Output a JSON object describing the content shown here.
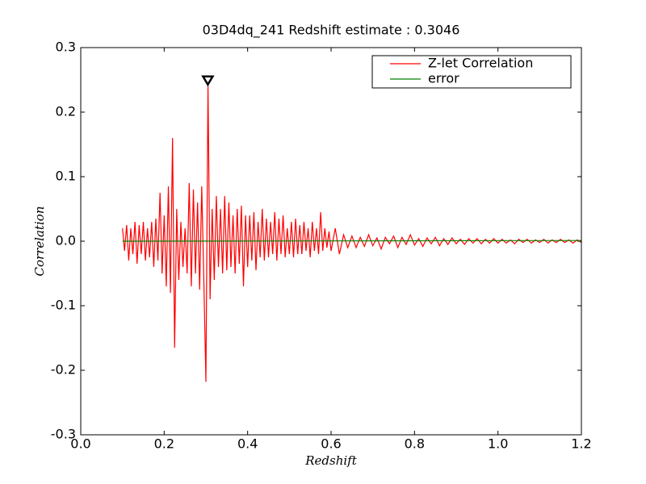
{
  "chart_data": {
    "type": "line",
    "title": "03D4dq_241 Redshift estimate : 0.3046",
    "xlabel": "Redshift",
    "ylabel": "Correlation",
    "xlim": [
      0,
      1.2
    ],
    "ylim": [
      -0.3,
      0.3
    ],
    "xticks": [
      {
        "value": 0,
        "label": "0.0"
      },
      0.2,
      0.4,
      0.6,
      0.8,
      {
        "value": 1,
        "label": "1.0"
      },
      1.2
    ],
    "yticks": [
      -0.3,
      -0.2,
      -0.1,
      {
        "value": 0,
        "label": "0.0"
      },
      0.1,
      0.2,
      0.3
    ],
    "legend": "upper right",
    "series": [
      {
        "name": "Z-let Correlation",
        "color": "#ff0000",
        "x": [
          0.1,
          0.105,
          0.11,
          0.115,
          0.12,
          0.125,
          0.13,
          0.135,
          0.14,
          0.145,
          0.15,
          0.155,
          0.16,
          0.165,
          0.17,
          0.175,
          0.18,
          0.185,
          0.19,
          0.195,
          0.2,
          0.205,
          0.21,
          0.215,
          0.22,
          0.225,
          0.23,
          0.235,
          0.24,
          0.245,
          0.25,
          0.255,
          0.26,
          0.265,
          0.27,
          0.275,
          0.28,
          0.285,
          0.29,
          0.295,
          0.3,
          0.305,
          0.31,
          0.315,
          0.32,
          0.325,
          0.33,
          0.335,
          0.34,
          0.345,
          0.35,
          0.355,
          0.36,
          0.365,
          0.37,
          0.375,
          0.38,
          0.385,
          0.39,
          0.395,
          0.4,
          0.405,
          0.41,
          0.415,
          0.42,
          0.425,
          0.43,
          0.435,
          0.44,
          0.445,
          0.45,
          0.455,
          0.46,
          0.465,
          0.47,
          0.475,
          0.48,
          0.485,
          0.49,
          0.495,
          0.5,
          0.505,
          0.51,
          0.515,
          0.52,
          0.525,
          0.53,
          0.535,
          0.54,
          0.545,
          0.55,
          0.555,
          0.56,
          0.565,
          0.57,
          0.575,
          0.58,
          0.585,
          0.59,
          0.595,
          0.6,
          0.61,
          0.62,
          0.63,
          0.64,
          0.65,
          0.66,
          0.67,
          0.68,
          0.69,
          0.7,
          0.71,
          0.72,
          0.73,
          0.74,
          0.75,
          0.76,
          0.77,
          0.78,
          0.79,
          0.8,
          0.81,
          0.82,
          0.83,
          0.84,
          0.85,
          0.86,
          0.87,
          0.88,
          0.89,
          0.9,
          0.91,
          0.92,
          0.93,
          0.94,
          0.95,
          0.96,
          0.97,
          0.98,
          0.99,
          1.0,
          1.01,
          1.02,
          1.03,
          1.04,
          1.05,
          1.06,
          1.07,
          1.08,
          1.09,
          1.1,
          1.11,
          1.12,
          1.13,
          1.14,
          1.15,
          1.16,
          1.17,
          1.18,
          1.19,
          1.2
        ],
        "values": [
          0.02,
          -0.015,
          0.025,
          -0.03,
          0.02,
          -0.02,
          0.03,
          -0.035,
          0.025,
          -0.02,
          0.03,
          -0.03,
          0.02,
          -0.025,
          0.03,
          -0.04,
          0.035,
          -0.03,
          0.075,
          -0.05,
          0.04,
          -0.07,
          0.085,
          -0.08,
          0.16,
          -0.165,
          0.05,
          -0.06,
          0.03,
          -0.04,
          0.02,
          -0.05,
          0.09,
          -0.07,
          0.08,
          -0.05,
          0.06,
          -0.075,
          0.085,
          -0.06,
          -0.218,
          0.245,
          -0.09,
          0.05,
          -0.06,
          0.07,
          -0.04,
          0.05,
          -0.05,
          0.07,
          -0.045,
          0.06,
          -0.04,
          0.04,
          -0.05,
          0.05,
          -0.035,
          0.055,
          -0.07,
          0.04,
          -0.04,
          0.04,
          -0.03,
          0.045,
          -0.045,
          0.03,
          -0.025,
          0.05,
          -0.03,
          0.035,
          -0.025,
          0.03,
          -0.02,
          0.045,
          -0.03,
          0.035,
          -0.02,
          0.04,
          -0.025,
          0.02,
          -0.02,
          0.03,
          -0.025,
          0.035,
          -0.02,
          0.025,
          -0.02,
          0.03,
          -0.015,
          0.02,
          -0.025,
          0.03,
          -0.015,
          0.02,
          -0.02,
          0.045,
          -0.015,
          0.02,
          -0.01,
          0.015,
          -0.015,
          0.02,
          -0.02,
          0.01,
          -0.01,
          0.008,
          -0.01,
          0.006,
          -0.008,
          0.01,
          -0.007,
          0.005,
          -0.012,
          0.006,
          -0.004,
          0.008,
          -0.01,
          0.006,
          -0.005,
          0.01,
          -0.006,
          0.004,
          -0.008,
          0.005,
          -0.004,
          0.006,
          -0.007,
          0.004,
          -0.005,
          0.005,
          -0.004,
          0.003,
          -0.005,
          0.004,
          -0.003,
          0.004,
          -0.004,
          0.003,
          -0.003,
          0.004,
          -0.003,
          0.003,
          -0.003,
          0.002,
          -0.004,
          0.003,
          -0.002,
          0.003,
          -0.003,
          0.002,
          -0.002,
          0.003,
          -0.003,
          0.002,
          -0.002,
          0.003,
          -0.002,
          0.002,
          -0.003,
          0.002,
          -0.002
        ]
      },
      {
        "name": "error",
        "color": "#008000",
        "x": [
          0.1,
          1.2
        ],
        "values": [
          0,
          0.001
        ]
      }
    ],
    "marker": {
      "x": 0.3046,
      "y": 0.249,
      "color": "#000000"
    }
  }
}
